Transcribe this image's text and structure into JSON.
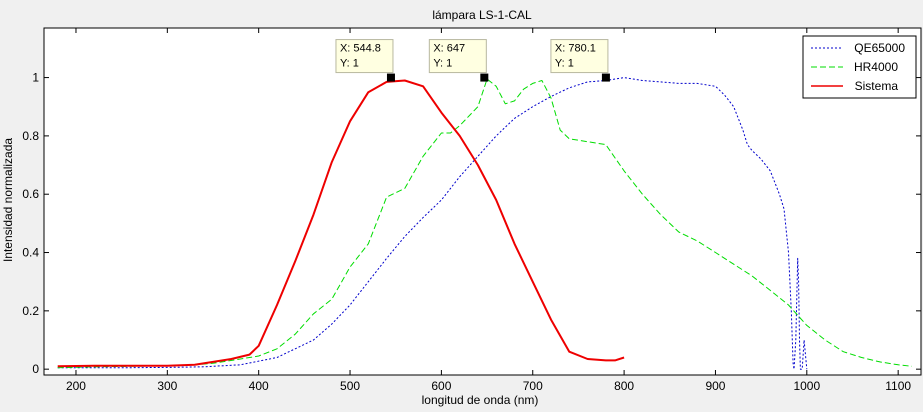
{
  "chart_data": {
    "type": "line",
    "title": "lámpara  LS-1-CAL",
    "xlabel": "longitud de onda (nm)",
    "ylabel": "Intensidad normalizada",
    "xlim": [
      165,
      1125
    ],
    "ylim": [
      -0.02,
      1.17
    ],
    "xticks": [
      200,
      300,
      400,
      500,
      600,
      700,
      800,
      900,
      1000,
      1100
    ],
    "yticks": [
      0,
      0.2,
      0.4,
      0.6,
      0.8,
      1
    ],
    "ytick_labels": [
      "0",
      "0.2",
      "0.4",
      "0.6",
      "0.8",
      "1"
    ],
    "grid": false,
    "legend_position": "top-right",
    "series": [
      {
        "name": "QE65000",
        "color": "#0000cc",
        "style": "dotted",
        "x": [
          180,
          220,
          260,
          300,
          340,
          380,
          420,
          460,
          480,
          500,
          520,
          540,
          560,
          580,
          600,
          620,
          640,
          660,
          680,
          700,
          720,
          740,
          760,
          780,
          800,
          820,
          840,
          860,
          880,
          900,
          910,
          920,
          930,
          935,
          940,
          950,
          960,
          970,
          975,
          980,
          983,
          985,
          986,
          988,
          990,
          991,
          992,
          993,
          995,
          997,
          1000
        ],
        "values": [
          0.005,
          0.005,
          0.005,
          0.006,
          0.008,
          0.015,
          0.04,
          0.1,
          0.155,
          0.22,
          0.3,
          0.38,
          0.455,
          0.52,
          0.58,
          0.66,
          0.73,
          0.8,
          0.86,
          0.9,
          0.935,
          0.965,
          0.985,
          0.99,
          1.0,
          0.99,
          0.985,
          0.98,
          0.98,
          0.97,
          0.94,
          0.9,
          0.82,
          0.77,
          0.75,
          0.72,
          0.68,
          0.6,
          0.55,
          0.4,
          0.2,
          0.02,
          0.0,
          0.1,
          0.38,
          0.3,
          0.1,
          0.0,
          0.0,
          0.1,
          0.0
        ]
      },
      {
        "name": "HR4000",
        "color": "#00dd00",
        "style": "dashed",
        "x": [
          180,
          220,
          260,
          300,
          330,
          350,
          360,
          380,
          400,
          420,
          440,
          460,
          480,
          500,
          520,
          540,
          560,
          580,
          600,
          610,
          620,
          640,
          650,
          660,
          670,
          680,
          690,
          700,
          710,
          720,
          730,
          740,
          760,
          780,
          800,
          820,
          840,
          860,
          880,
          900,
          920,
          940,
          960,
          980,
          1000,
          1020,
          1040,
          1060,
          1080,
          1100,
          1115
        ],
        "values": [
          0.005,
          0.008,
          0.01,
          0.012,
          0.015,
          0.02,
          0.025,
          0.035,
          0.045,
          0.07,
          0.12,
          0.19,
          0.24,
          0.35,
          0.43,
          0.59,
          0.62,
          0.73,
          0.81,
          0.81,
          0.835,
          0.9,
          0.995,
          0.97,
          0.91,
          0.92,
          0.96,
          0.98,
          0.99,
          0.93,
          0.82,
          0.79,
          0.78,
          0.77,
          0.68,
          0.6,
          0.53,
          0.47,
          0.44,
          0.4,
          0.36,
          0.32,
          0.27,
          0.22,
          0.15,
          0.1,
          0.06,
          0.04,
          0.025,
          0.015,
          0.01
        ]
      },
      {
        "name": "Sistema",
        "color": "#ee0000",
        "style": "solid",
        "x": [
          180,
          220,
          260,
          300,
          330,
          350,
          370,
          390,
          400,
          420,
          440,
          460,
          480,
          500,
          520,
          540,
          560,
          580,
          600,
          620,
          640,
          660,
          680,
          700,
          720,
          740,
          760,
          780,
          790,
          800
        ],
        "values": [
          0.01,
          0.012,
          0.012,
          0.012,
          0.015,
          0.025,
          0.035,
          0.05,
          0.08,
          0.22,
          0.37,
          0.53,
          0.71,
          0.85,
          0.95,
          0.985,
          0.99,
          0.97,
          0.88,
          0.8,
          0.7,
          0.58,
          0.43,
          0.3,
          0.17,
          0.06,
          0.035,
          0.03,
          0.03,
          0.04
        ]
      }
    ],
    "annotations": [
      {
        "x": 544.8,
        "y": 1,
        "x_text": "X: 544.8",
        "y_text": "Y: 1"
      },
      {
        "x": 647,
        "y": 1,
        "x_text": "X: 647",
        "y_text": "Y: 1"
      },
      {
        "x": 780.1,
        "y": 1,
        "x_text": "X: 780.1",
        "y_text": "Y: 1"
      }
    ]
  }
}
